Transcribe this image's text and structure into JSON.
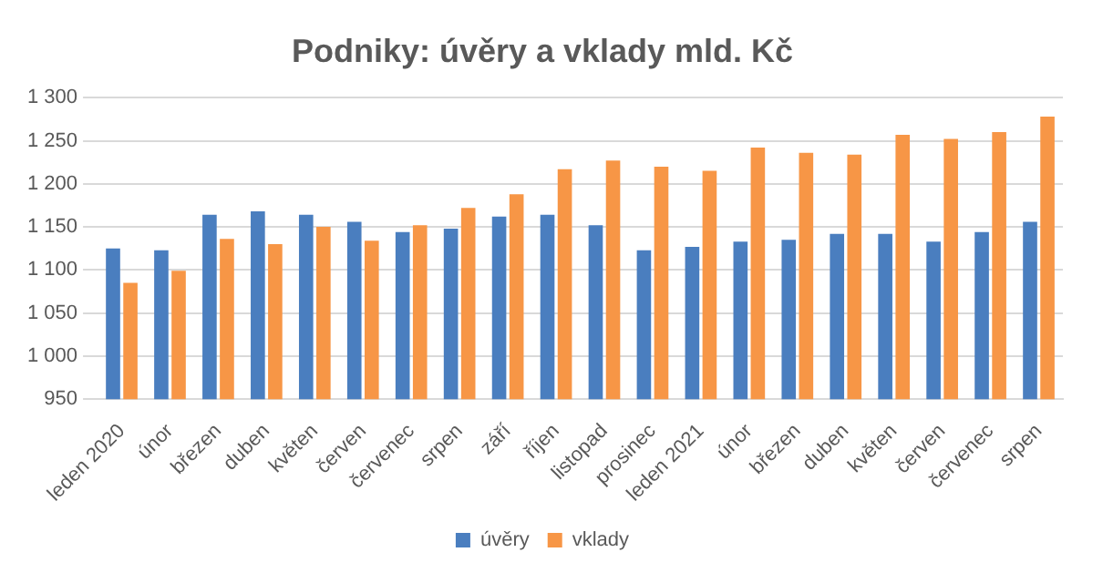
{
  "chart_data": {
    "type": "bar",
    "title": "Podniky: úvěry a vklady mld. Kč",
    "categories": [
      "leden 2020",
      "únor",
      "březen",
      "duben",
      "květen",
      "červen",
      "červenec",
      "srpen",
      "září",
      "říjen",
      "listopad",
      "prosinec",
      "leden 2021",
      "únor",
      "březen",
      "duben",
      "květen",
      "červen",
      "červenec",
      "srpen"
    ],
    "series": [
      {
        "name": "úvěry",
        "color": "#4a7ebf",
        "values": [
          1125,
          1123,
          1164,
          1168,
          1164,
          1156,
          1144,
          1148,
          1162,
          1164,
          1152,
          1123,
          1127,
          1133,
          1135,
          1142,
          1142,
          1133,
          1144,
          1156
        ]
      },
      {
        "name": "vklady",
        "color": "#f79646",
        "values": [
          1085,
          1099,
          1136,
          1130,
          1150,
          1134,
          1152,
          1172,
          1188,
          1217,
          1227,
          1220,
          1215,
          1242,
          1236,
          1234,
          1257,
          1252,
          1260,
          1278
        ]
      }
    ],
    "ylim": [
      950,
      1300
    ],
    "yticks": [
      {
        "value": 950,
        "label": "950"
      },
      {
        "value": 1000,
        "label": "1 000"
      },
      {
        "value": 1050,
        "label": "1 050"
      },
      {
        "value": 1100,
        "label": "1 100"
      },
      {
        "value": 1150,
        "label": "1 150"
      },
      {
        "value": 1200,
        "label": "1 200"
      },
      {
        "value": 1250,
        "label": "1 250"
      },
      {
        "value": 1300,
        "label": "1 300"
      }
    ],
    "grid": "y",
    "legend": "bottom"
  }
}
